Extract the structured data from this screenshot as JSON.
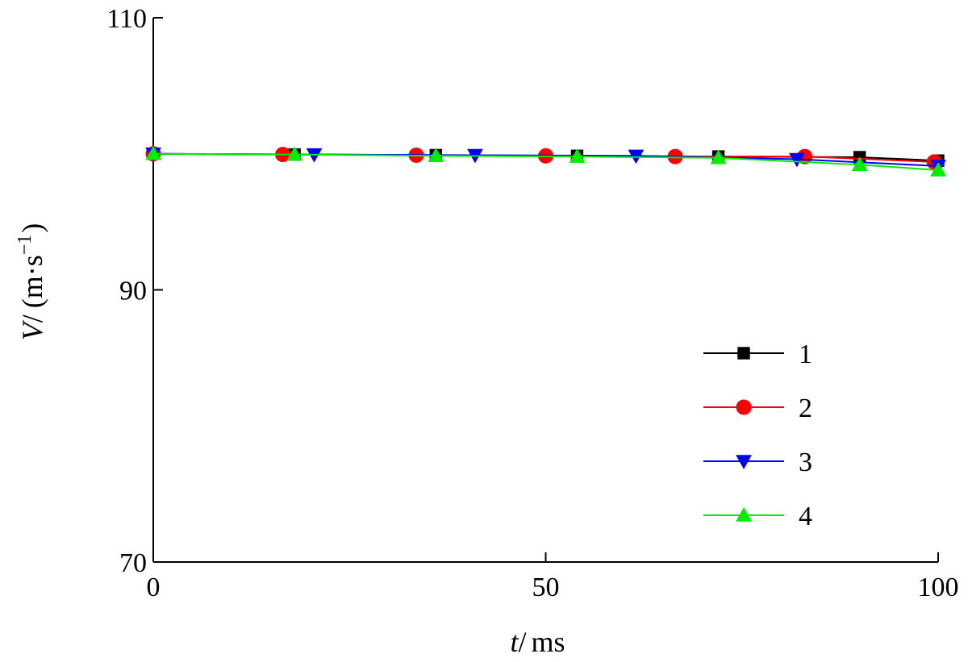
{
  "chart_data": {
    "type": "line",
    "xlabel": {
      "var": "t",
      "sep": "/",
      "unit": "ms"
    },
    "ylabel": {
      "var": "V",
      "sep": "/",
      "open": "(",
      "unit": "m·s",
      "exp": "−1",
      "close": ")"
    },
    "xlim": [
      0,
      100
    ],
    "ylim": [
      70,
      110
    ],
    "xticks": [
      0,
      50,
      100
    ],
    "yticks": [
      70,
      90,
      110
    ],
    "grid": false,
    "legend_position": "lower-right",
    "series": [
      {
        "name": "1",
        "color": "#000000",
        "marker": "square",
        "x": [
          0,
          18,
          36,
          54,
          72,
          90,
          100
        ],
        "y": [
          100.0,
          99.95,
          99.9,
          99.85,
          99.8,
          99.75,
          99.5
        ]
      },
      {
        "name": "2",
        "color": "#ff0000",
        "marker": "circle",
        "x": [
          0,
          16.5,
          33.5,
          50,
          66.5,
          83,
          99.5
        ],
        "y": [
          100.0,
          99.95,
          99.9,
          99.85,
          99.8,
          99.8,
          99.4
        ]
      },
      {
        "name": "3",
        "color": "#0000ff",
        "marker": "triangle-down",
        "x": [
          0,
          20.5,
          41,
          61.5,
          82,
          100
        ],
        "y": [
          100.0,
          99.95,
          99.9,
          99.85,
          99.6,
          99.1
        ]
      },
      {
        "name": "4",
        "color": "#00ee00",
        "marker": "triangle-up",
        "x": [
          0,
          18,
          36,
          54,
          72,
          90,
          100
        ],
        "y": [
          100.0,
          99.95,
          99.85,
          99.8,
          99.7,
          99.2,
          98.8
        ]
      }
    ]
  }
}
